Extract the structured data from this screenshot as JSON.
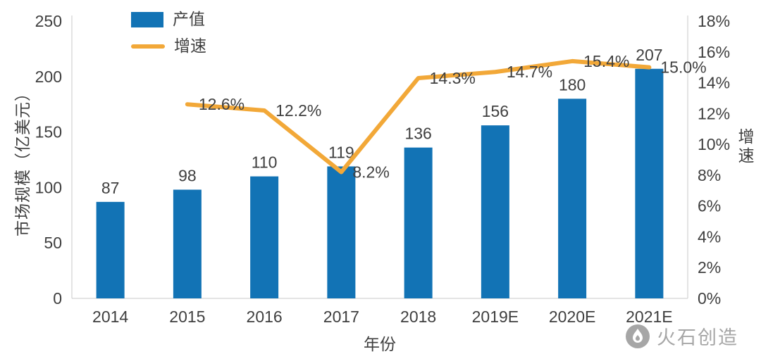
{
  "chart_data": {
    "type": "bar",
    "subtype": "combo-bar-line-dual-axis",
    "categories": [
      "2014",
      "2015",
      "2016",
      "2017",
      "2018",
      "2019E",
      "2020E",
      "2021E"
    ],
    "series": [
      {
        "name": "产值",
        "type": "bar",
        "axis": "left",
        "color": "#1273b5",
        "values": [
          87,
          98,
          110,
          119,
          136,
          156,
          180,
          207
        ],
        "labels": [
          "87",
          "98",
          "110",
          "119",
          "136",
          "156",
          "180",
          "207"
        ]
      },
      {
        "name": "增速",
        "type": "line",
        "axis": "right",
        "color": "#f2a838",
        "values": [
          null,
          12.6,
          12.2,
          8.2,
          14.3,
          14.7,
          15.4,
          15.0
        ],
        "labels": [
          null,
          "12.6%",
          "12.2%",
          "8.2%",
          "14.3%",
          "14.7%",
          "15.4%",
          "15.0%"
        ]
      }
    ],
    "left_axis": {
      "title": "市场规模（亿美元）",
      "min": 0,
      "max": 250,
      "tick_values": [
        0,
        50,
        100,
        150,
        200,
        250
      ],
      "tick_labels": [
        "0",
        "50",
        "100",
        "150",
        "200",
        "250"
      ]
    },
    "right_axis": {
      "title": "增速",
      "min": 0,
      "max": 18,
      "tick_values": [
        0,
        2,
        4,
        6,
        8,
        10,
        12,
        14,
        16,
        18
      ],
      "tick_labels": [
        "0%",
        "2%",
        "4%",
        "6%",
        "8%",
        "10%",
        "12%",
        "14%",
        "16%",
        "18%"
      ]
    },
    "xlabel": "年份",
    "legend_position": "top-left",
    "grid": false,
    "text_color": "#3f3f3f",
    "axis_line_color": "#c9c9c9"
  },
  "watermark": {
    "text": "火石创造"
  }
}
